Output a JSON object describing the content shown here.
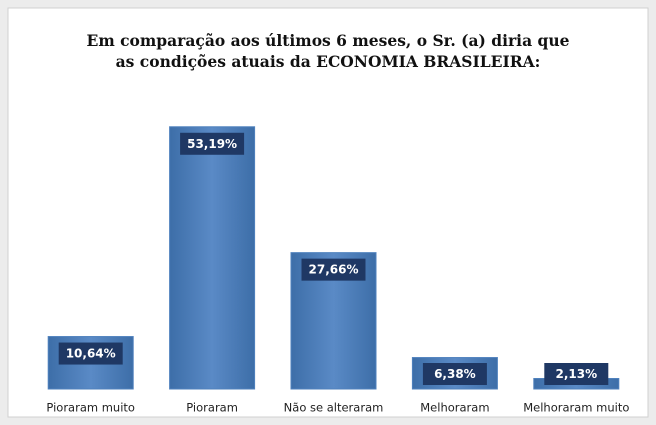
{
  "chart_data": {
    "type": "bar",
    "title": [
      "Em comparação aos últimos 6 meses, o Sr. (a) diria que",
      "as condições atuais da ECONOMIA BRASILEIRA:"
    ],
    "categories": [
      "Pioraram muito",
      "Pioraram",
      "Não se alteraram",
      "Melhoraram",
      "Melhoraram muito"
    ],
    "values": [
      10.64,
      53.19,
      27.66,
      6.38,
      2.13
    ],
    "value_labels": [
      "10,64%",
      "53,19%",
      "27,66%",
      "6,38%",
      "2,13%"
    ],
    "color": "#4f81bd"
  }
}
